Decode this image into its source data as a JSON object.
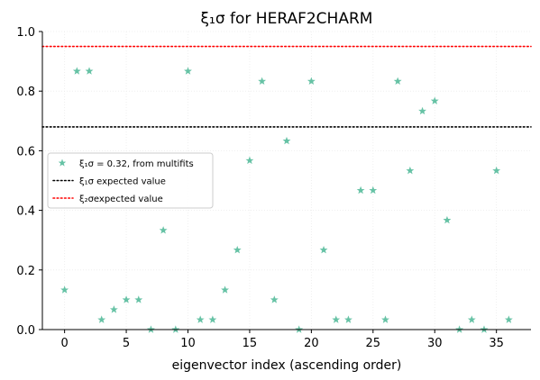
{
  "chart_data": {
    "type": "scatter",
    "title": "ξ₁σ for HERAF2CHARM",
    "xlabel": "eigenvector index (ascending order)",
    "ylabel": "",
    "xlim": [
      -1.8,
      37.8
    ],
    "ylim": [
      0,
      1
    ],
    "x_ticks": [
      0,
      5,
      10,
      15,
      20,
      25,
      30,
      35
    ],
    "y_ticks": [
      0.0,
      0.2,
      0.4,
      0.6,
      0.8,
      1.0
    ],
    "x_tick_labels": [
      "0",
      "5",
      "10",
      "15",
      "20",
      "25",
      "30",
      "35"
    ],
    "y_tick_labels": [
      "0.0",
      "0.2",
      "0.4",
      "0.6",
      "0.8",
      "1.0"
    ],
    "grid": true,
    "legend_position": "center-left",
    "series": [
      {
        "name": "ξ₁σ = 0.32, from multifits",
        "color": "#66c2a5",
        "marker": "star",
        "x": [
          0,
          1,
          2,
          3,
          4,
          5,
          6,
          7,
          8,
          9,
          10,
          11,
          12,
          13,
          14,
          15,
          16,
          17,
          18,
          19,
          20,
          21,
          22,
          23,
          24,
          25,
          26,
          27,
          28,
          29,
          30,
          31,
          32,
          33,
          34,
          35,
          36
        ],
        "y": [
          0.133,
          0.867,
          0.867,
          0.033,
          0.067,
          0.1,
          0.1,
          0.0,
          0.333,
          0.0,
          0.867,
          0.033,
          0.033,
          0.133,
          0.267,
          0.567,
          0.833,
          0.1,
          0.633,
          0.0,
          0.833,
          0.267,
          0.033,
          0.033,
          0.467,
          0.467,
          0.033,
          0.833,
          0.533,
          0.733,
          0.767,
          0.367,
          0.0,
          0.033,
          0.0,
          0.533,
          0.033
        ]
      }
    ],
    "hlines": [
      {
        "name": "ξ₁σ expected value",
        "y": 0.68,
        "color": "#000000",
        "style": "dotted"
      },
      {
        "name": "ξ₂σexpected value",
        "y": 0.95,
        "color": "#ff0000",
        "style": "dotted"
      }
    ]
  }
}
